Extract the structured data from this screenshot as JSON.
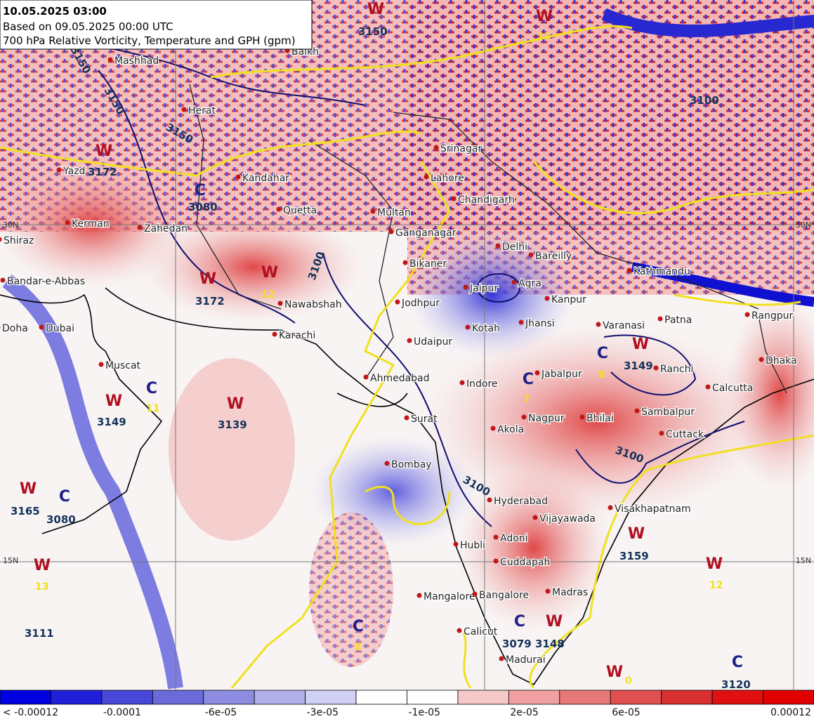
{
  "header": {
    "title": "10.05.2025 03:00",
    "based_on": "Based on 09.05.2025 00:00 UTC",
    "description": "700 hPa Relative Vorticity, Temperature and GPH (gpm)"
  },
  "cities": [
    "Mashhad",
    "Balkh",
    "Herat",
    "Yazd",
    "Kandahar",
    "Quetta",
    "Kerman",
    "Zahedan",
    "Shiraz",
    "Bandar-e-Abbas",
    "Nawabshah",
    "Karachi",
    "Doha",
    "Dubai",
    "Muscat",
    "Srinagar",
    "Lahore",
    "Chandigarh",
    "Multan",
    "Ganganagar",
    "Delhi",
    "Bareilly",
    "Bikaner",
    "Kathmandu",
    "Agra",
    "Jaipur",
    "Kanpur",
    "Jodhpur",
    "Jhansi",
    "Kotah",
    "Varanasi",
    "Patna",
    "Rangpur",
    "Udaipur",
    "Dhaka",
    "Ranchi",
    "Jabalpur",
    "Calcutta",
    "Ahmedabad",
    "Indore",
    "Sambalpur",
    "Nagpur",
    "Bhilai",
    "Surat",
    "Akola",
    "Cuttack",
    "Bombay",
    "Hyderabad",
    "Visakhapatnam",
    "Vijayawada",
    "Adoni",
    "Hubli",
    "Cuddapah",
    "Mangalore",
    "Bangalore",
    "Madras",
    "Calicut",
    "Madurai"
  ],
  "pressure_systems": [
    {
      "letter": "W",
      "gph": 3150
    },
    {
      "letter": "W",
      "temp": 11
    },
    {
      "letter": "W",
      "gph": 3172
    },
    {
      "letter": "C",
      "gph": 3080
    },
    {
      "letter": "W",
      "temp": 12
    },
    {
      "letter": "W",
      "gph": 3172
    },
    {
      "letter": "W",
      "gph": 3139
    },
    {
      "letter": "W",
      "gph": 3149
    },
    {
      "letter": "C",
      "temp": 11
    },
    {
      "letter": "W",
      "gph": 3165
    },
    {
      "letter": "C",
      "gph": 3080
    },
    {
      "letter": "W",
      "temp": 13
    },
    {
      "letter": "W",
      "gph": 3149
    },
    {
      "letter": "C",
      "temp": 8
    },
    {
      "letter": "C",
      "temp": 7
    },
    {
      "letter": "W",
      "gph": 3159
    },
    {
      "letter": "W",
      "temp": 12
    },
    {
      "letter": "C",
      "temp": 8
    },
    {
      "letter": "C",
      "gph": 3079
    },
    {
      "letter": "W",
      "gph": 3148
    },
    {
      "letter": "W",
      "temp": 0
    },
    {
      "letter": "C",
      "gph": 3120
    }
  ],
  "gph_labels": [
    3111,
    3150,
    3150,
    3150,
    3100,
    3100,
    3100,
    3100
  ],
  "latitude_labels": [
    "30N",
    "15N"
  ],
  "colorbar": {
    "labels": [
      "< -0.00012",
      "-0.0001",
      "-6e-05",
      "-3e-05",
      "-1e-05",
      "2e-05",
      "6e-05",
      "0.00012"
    ],
    "colors": [
      "#0000e0",
      "#2020d8",
      "#4848d8",
      "#6a6ad8",
      "#8c8ce0",
      "#b0b0e8",
      "#d0d0f4",
      "#ffffff",
      "#ffffff",
      "#f6c8c8",
      "#f0a0a0",
      "#e87878",
      "#e05050",
      "#d83030",
      "#e01010",
      "#e00000"
    ]
  }
}
